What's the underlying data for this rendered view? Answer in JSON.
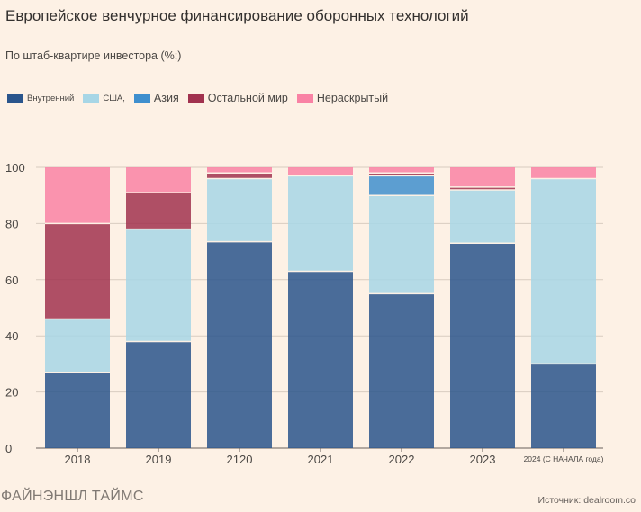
{
  "header": {
    "title": "Европейское венчурное финансирование оборонных технологий",
    "subtitle": "По штаб-квартире инвестора (%;)"
  },
  "legend": [
    {
      "label": "Внутренний",
      "color": "#2a558c",
      "size": "small"
    },
    {
      "label": "США,",
      "color": "#a7d6e6",
      "size": "small"
    },
    {
      "label": "Азия",
      "color": "#3f8fce",
      "size": "big"
    },
    {
      "label": "Остальной мир",
      "color": "#a1324f",
      "size": "big"
    },
    {
      "label": "Нераскрытый",
      "color": "#f982a4",
      "size": "big"
    }
  ],
  "chart_data": {
    "type": "bar",
    "stacked": true,
    "categories": [
      "2018",
      "2019",
      "2120",
      "2021",
      "2022",
      "2023",
      "2024 (С НАЧАЛА года)"
    ],
    "series": [
      {
        "name": "Внутренний",
        "color": "#2a558c",
        "values": [
          27,
          38,
          73.5,
          63,
          55,
          73,
          30
        ]
      },
      {
        "name": "США,",
        "color": "#a7d6e6",
        "values": [
          19,
          40,
          22.5,
          34,
          35,
          19,
          66
        ]
      },
      {
        "name": "Азия",
        "color": "#3f8fce",
        "values": [
          0,
          0,
          0,
          0,
          7,
          0,
          0
        ]
      },
      {
        "name": "Остальной мир",
        "color": "#a1324f",
        "values": [
          34,
          13,
          2,
          0,
          1,
          1,
          0
        ]
      },
      {
        "name": "Нераскрытый",
        "color": "#f982a4",
        "values": [
          20,
          9,
          2,
          3,
          2,
          7,
          4
        ]
      }
    ],
    "ylim": [
      0,
      100
    ],
    "yticks": [
      "0",
      "20",
      "40",
      "60",
      "80",
      "100"
    ],
    "title": "Европейское венчурное финансирование оборонных технологий",
    "xlabel": "",
    "ylabel": ""
  },
  "footer": {
    "brand": "ФАЙНЭНШЛ ТАЙМС",
    "source": "Источник: dealroom.co"
  }
}
